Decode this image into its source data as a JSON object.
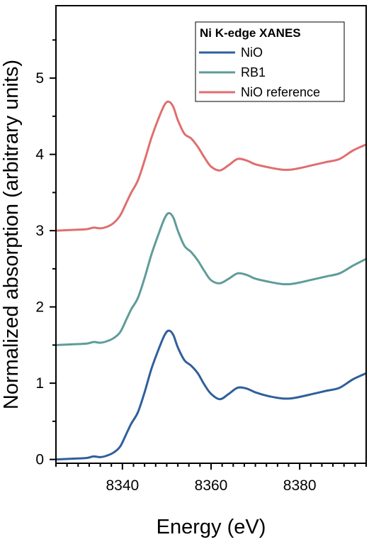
{
  "chart_data": {
    "type": "line",
    "xlabel": "Energy (eV)",
    "ylabel": "Normalized absorption (arbitrary units)",
    "xlim": [
      8325,
      8395
    ],
    "ylim": [
      -0.05,
      5.95
    ],
    "xticks": [
      8340,
      8360,
      8380
    ],
    "yticks": [
      0,
      1,
      2,
      3,
      4,
      5
    ],
    "grid": false,
    "legend_title": "Ni K-edge XANES",
    "legend_position": "top-right",
    "series": [
      {
        "name": "NiO",
        "color": "#2f5f9b",
        "x": [
          8325,
          8329,
          8332,
          8333.5,
          8335,
          8336.5,
          8338,
          8339.5,
          8341,
          8342,
          8343.5,
          8345,
          8346.5,
          8348,
          8349.5,
          8350.5,
          8351.5,
          8352.5,
          8354,
          8355.5,
          8357,
          8358.5,
          8360,
          8362,
          8364,
          8366,
          8368,
          8370,
          8373,
          8376,
          8378,
          8380,
          8383,
          8386,
          8389,
          8392,
          8395
        ],
        "y": [
          0.0,
          0.01,
          0.02,
          0.04,
          0.03,
          0.05,
          0.09,
          0.17,
          0.35,
          0.47,
          0.62,
          0.88,
          1.18,
          1.42,
          1.63,
          1.69,
          1.63,
          1.47,
          1.3,
          1.23,
          1.13,
          0.98,
          0.86,
          0.79,
          0.86,
          0.94,
          0.93,
          0.88,
          0.83,
          0.8,
          0.8,
          0.82,
          0.86,
          0.9,
          0.94,
          1.05,
          1.13
        ]
      },
      {
        "name": "RB1",
        "color": "#5e9c99",
        "x": [
          8325,
          8329,
          8332,
          8333.5,
          8335,
          8336.5,
          8338,
          8339.5,
          8341,
          8342,
          8343.5,
          8345,
          8346.5,
          8348,
          8349.5,
          8350.5,
          8351.5,
          8352.5,
          8354,
          8355.5,
          8357,
          8358.5,
          8360,
          8362,
          8364,
          8366,
          8368,
          8370,
          8373,
          8376,
          8378,
          8380,
          8383,
          8386,
          8389,
          8392,
          8395
        ],
        "y": [
          1.5,
          1.51,
          1.52,
          1.54,
          1.53,
          1.55,
          1.59,
          1.67,
          1.85,
          1.97,
          2.12,
          2.38,
          2.68,
          2.93,
          3.16,
          3.23,
          3.17,
          3.0,
          2.8,
          2.72,
          2.61,
          2.47,
          2.35,
          2.31,
          2.37,
          2.44,
          2.42,
          2.37,
          2.33,
          2.3,
          2.3,
          2.32,
          2.36,
          2.4,
          2.44,
          2.54,
          2.63
        ]
      },
      {
        "name": "NiO reference",
        "color": "#e06e6e",
        "x": [
          8325,
          8329,
          8332,
          8333.5,
          8335,
          8336.5,
          8338,
          8339.5,
          8341,
          8342,
          8343.5,
          8345,
          8346.5,
          8348,
          8349.5,
          8350.5,
          8351.5,
          8352.5,
          8354,
          8355.5,
          8357,
          8358.5,
          8360,
          8362,
          8364,
          8366,
          8368,
          8370,
          8373,
          8376,
          8378,
          8380,
          8383,
          8386,
          8389,
          8392,
          8395
        ],
        "y": [
          3.0,
          3.01,
          3.02,
          3.04,
          3.03,
          3.05,
          3.1,
          3.2,
          3.38,
          3.5,
          3.66,
          3.92,
          4.21,
          4.45,
          4.65,
          4.69,
          4.62,
          4.45,
          4.27,
          4.21,
          4.1,
          3.96,
          3.84,
          3.79,
          3.86,
          3.94,
          3.92,
          3.87,
          3.83,
          3.8,
          3.8,
          3.82,
          3.86,
          3.9,
          3.94,
          4.05,
          4.13
        ]
      }
    ]
  }
}
